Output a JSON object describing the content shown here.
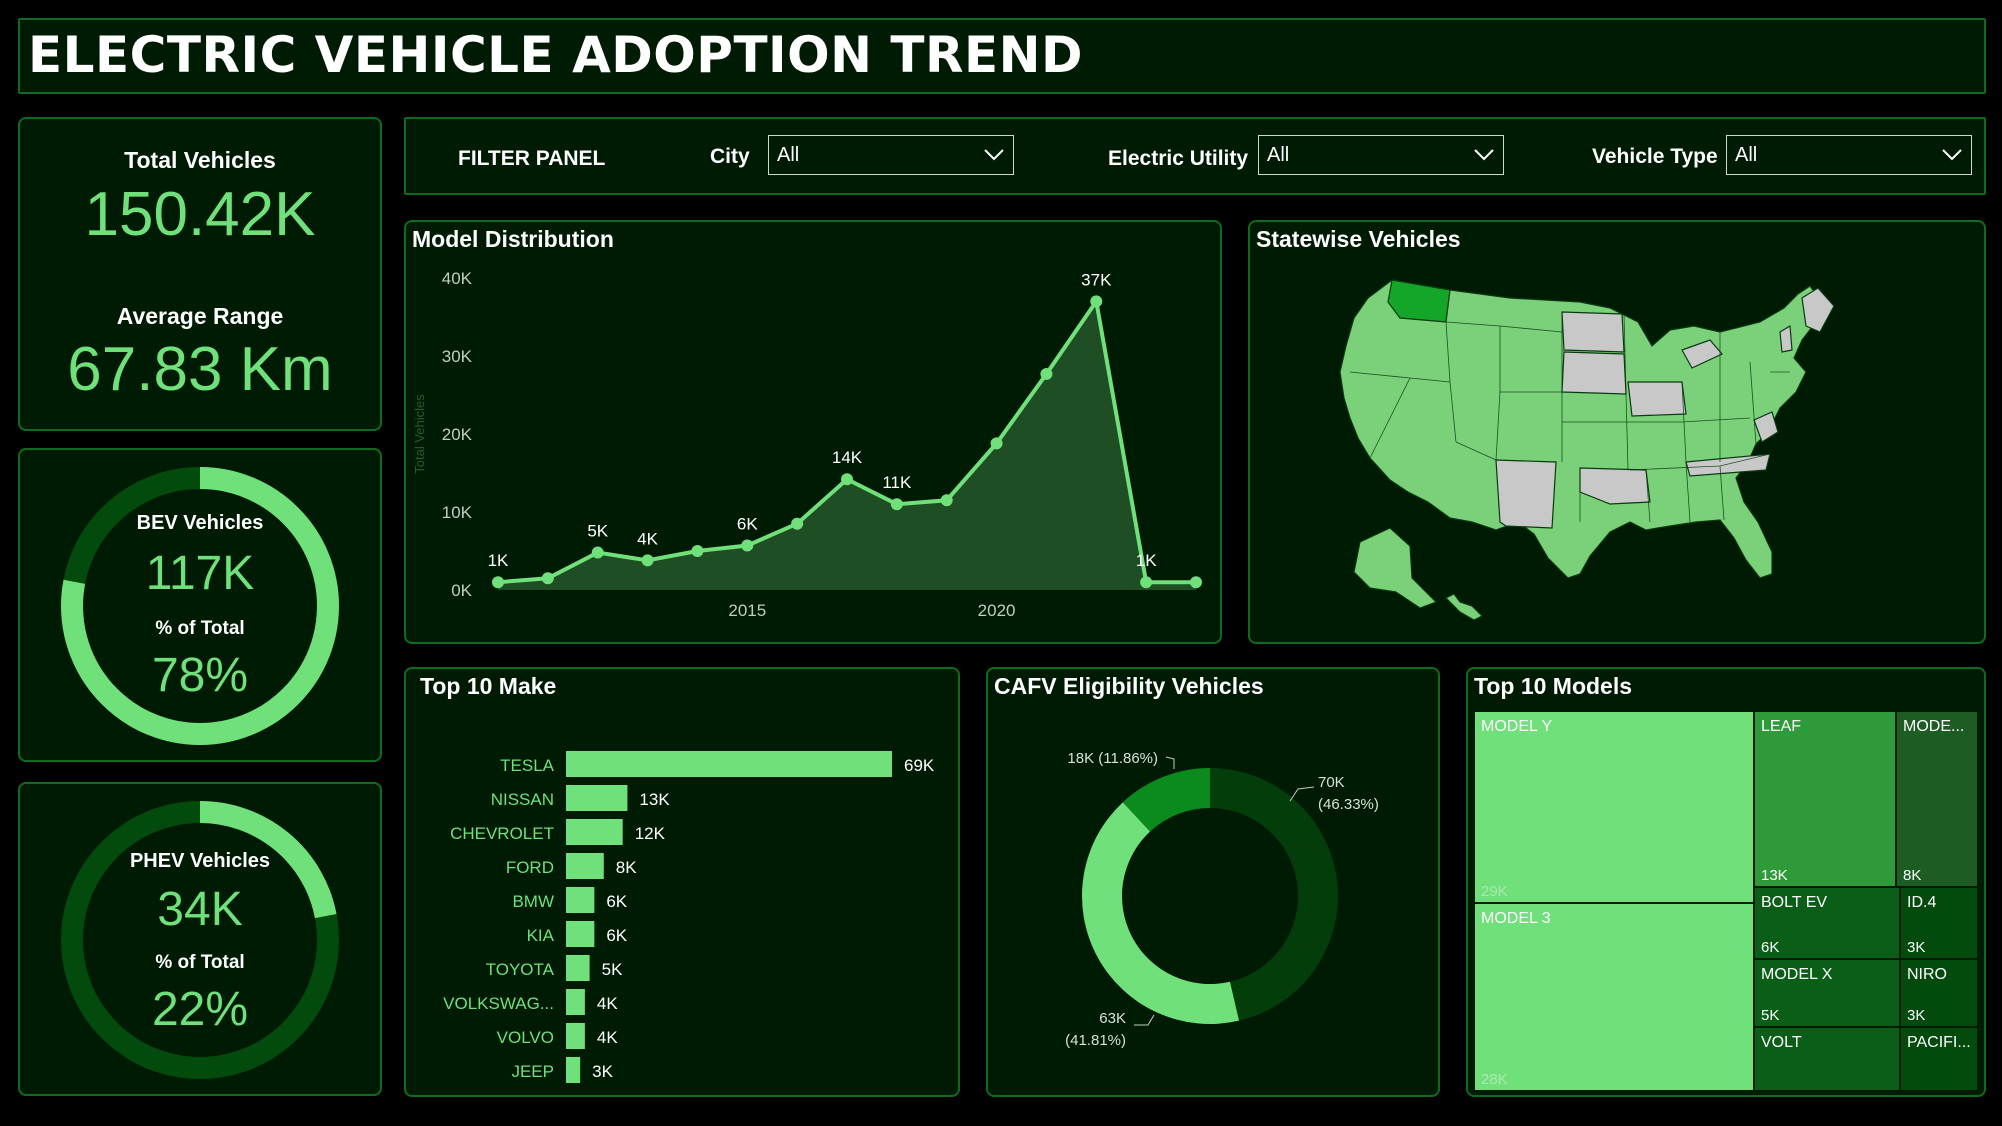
{
  "title": "ELECTRIC VEHICLE ADOPTION TREND",
  "kpis": {
    "total_label": "Total Vehicles",
    "total_value": "150.42K",
    "range_label": "Average Range",
    "range_value": "67.83 Km"
  },
  "bev": {
    "label": "BEV Vehicles",
    "value": "117K",
    "pct_label": "% of Total",
    "pct_value": "78%",
    "fraction": 0.78
  },
  "phev": {
    "label": "PHEV Vehicles",
    "value": "34K",
    "pct_label": "% of Total",
    "pct_value": "22%",
    "fraction": 0.22
  },
  "filters": {
    "panel_label": "FILTER PANEL",
    "city_label": "City",
    "city_value": "All",
    "utility_label": "Electric Utility",
    "utility_value": "All",
    "type_label": "Vehicle Type",
    "type_value": "All"
  },
  "colors": {
    "accent": "#6fe07a",
    "panel": "#001b04",
    "border": "#0f6b1e",
    "dark_green": "#064a10",
    "mid_green": "#0a8a1e"
  },
  "chart_data": [
    {
      "type": "area",
      "title": "Model Distribution",
      "ylabel": "Total Vehicles",
      "x": [
        2010,
        2011,
        2012,
        2013,
        2014,
        2015,
        2016,
        2017,
        2018,
        2019,
        2020,
        2021,
        2022,
        2023,
        2024
      ],
      "values": [
        1000,
        1500,
        4800,
        3800,
        5000,
        5700,
        8500,
        14200,
        11000,
        11500,
        18800,
        27700,
        37000,
        1000,
        1000
      ],
      "point_labels": [
        "1K",
        "",
        "5K",
        "4K",
        "",
        "6K",
        "",
        "14K",
        "11K",
        "",
        "",
        "",
        "37K",
        "1K",
        ""
      ],
      "y_ticks": [
        "0K",
        "10K",
        "20K",
        "30K",
        "40K"
      ],
      "x_ticks": [
        "2015",
        "2020"
      ],
      "ylim": [
        0,
        40000
      ]
    },
    {
      "type": "bar",
      "title": "Top 10 Make",
      "categories": [
        "TESLA",
        "NISSAN",
        "CHEVROLET",
        "FORD",
        "BMW",
        "KIA",
        "TOYOTA",
        "VOLKSWAG...",
        "VOLVO",
        "JEEP"
      ],
      "values": [
        69000,
        13000,
        12000,
        8000,
        6000,
        6000,
        5000,
        4000,
        4000,
        3000
      ],
      "labels": [
        "69K",
        "13K",
        "12K",
        "8K",
        "6K",
        "6K",
        "5K",
        "4K",
        "4K",
        "3K"
      ]
    },
    {
      "type": "pie",
      "title": "CAFV Eligibility Vehicles",
      "values": [
        70000,
        63000,
        18000
      ],
      "percents": [
        46.33,
        41.81,
        11.86
      ],
      "labels": [
        "70K",
        "63K",
        "18K (11.86%)"
      ],
      "percent_labels": [
        "(46.33%)",
        "(41.81%)",
        ""
      ],
      "colors": [
        "#023d0a",
        "#6fe07a",
        "#0b8a1d"
      ]
    },
    {
      "type": "table",
      "title": "Top 10 Models",
      "categories": [
        "MODEL Y",
        "MODEL 3",
        "LEAF",
        "MODE...",
        "BOLT EV",
        "ID.4",
        "MODEL X",
        "NIRO",
        "VOLT",
        "PACIFI..."
      ],
      "labels": [
        "29K",
        "28K",
        "13K",
        "8K",
        "6K",
        "3K",
        "5K",
        "3K",
        "",
        ""
      ]
    }
  ],
  "map": {
    "title": "Statewise Vehicles"
  }
}
